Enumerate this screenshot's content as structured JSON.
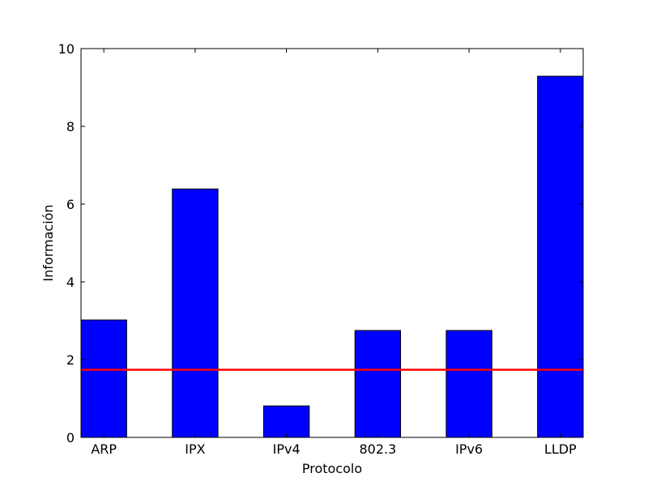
{
  "chart_data": {
    "type": "bar",
    "title": "",
    "xlabel": "Protocolo",
    "ylabel": "Información",
    "categories": [
      "ARP",
      "IPX",
      "IPv4",
      "802.3",
      "IPv6",
      "LLDP"
    ],
    "values": [
      3.02,
      6.39,
      0.81,
      2.75,
      2.75,
      9.29
    ],
    "ylim": [
      0,
      10
    ],
    "yticks": [
      0,
      2,
      4,
      6,
      8,
      10
    ],
    "ytick_labels": [
      "0",
      "2",
      "4",
      "6",
      "8",
      "10"
    ],
    "grid": false,
    "legend": "none",
    "reference_line": {
      "y": 1.74,
      "color": "#ff0000"
    },
    "colors": {
      "bar": "#0000ff",
      "bar_edge": "#000000",
      "axes": "#000000"
    }
  }
}
